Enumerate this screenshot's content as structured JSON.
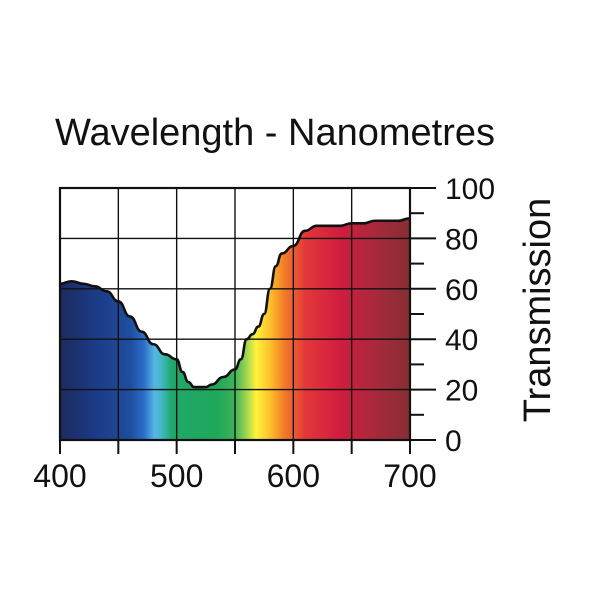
{
  "chart_data": {
    "type": "area",
    "title": "Wavelength - Nanometres",
    "xlabel": "",
    "ylabel": "Transmission",
    "xlim": [
      400,
      700
    ],
    "ylim": [
      0,
      100
    ],
    "x_ticks": [
      400,
      500,
      600,
      700
    ],
    "y_ticks": [
      0,
      20,
      40,
      60,
      80,
      100
    ],
    "grid": true,
    "fill": "visible-spectrum",
    "x": [
      400,
      410,
      420,
      430,
      440,
      450,
      460,
      470,
      480,
      490,
      500,
      505,
      510,
      515,
      520,
      525,
      530,
      540,
      550,
      555,
      560,
      565,
      570,
      575,
      580,
      585,
      590,
      600,
      610,
      620,
      630,
      640,
      650,
      660,
      670,
      680,
      690,
      700
    ],
    "values": [
      62,
      63,
      62,
      61,
      59,
      55,
      49,
      43,
      38,
      34,
      32,
      27,
      23,
      21,
      21,
      21,
      22,
      25,
      28,
      32,
      40,
      42,
      45,
      50,
      60,
      69,
      74,
      77,
      83,
      85,
      85,
      85,
      86,
      86,
      87,
      87,
      87,
      88
    ]
  }
}
